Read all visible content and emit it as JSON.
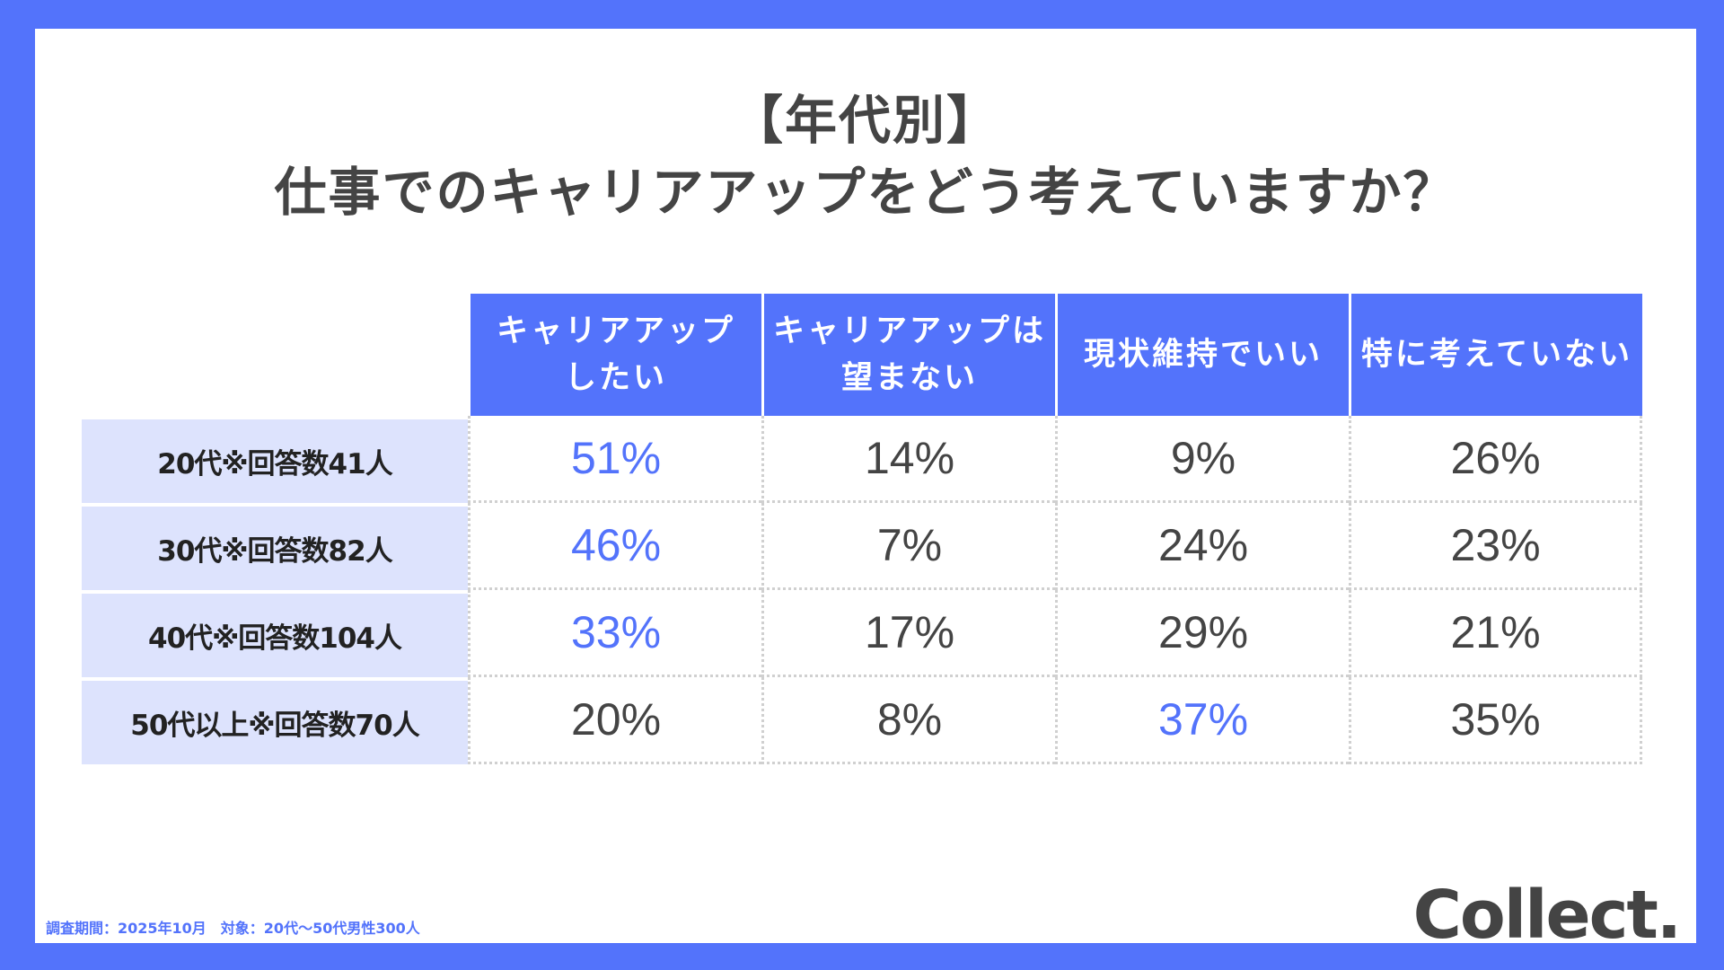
{
  "title": {
    "line1": "【年代別】",
    "line2": "仕事でのキャリアアップをどう考えていますか？"
  },
  "chart_data": {
    "type": "table",
    "columns": [
      {
        "line1": "キャリアアップ",
        "line2": "したい"
      },
      {
        "line1": "キャリアアップは",
        "line2": "望まない"
      },
      {
        "line1": "現状維持でいい",
        "line2": ""
      },
      {
        "line1": "特に考えていない",
        "line2": ""
      }
    ],
    "rows": [
      {
        "label": "20代※回答数41人",
        "values": [
          "51%",
          "14%",
          "9%",
          "26%"
        ],
        "highlight": [
          0
        ]
      },
      {
        "label": "30代※回答数82人",
        "values": [
          "46%",
          "7%",
          "24%",
          "23%"
        ],
        "highlight": [
          0
        ]
      },
      {
        "label": "40代※回答数104人",
        "values": [
          "33%",
          "17%",
          "29%",
          "21%"
        ],
        "highlight": [
          0
        ]
      },
      {
        "label": "50代以上※回答数70人",
        "values": [
          "20%",
          "8%",
          "37%",
          "35%"
        ],
        "highlight": [
          2
        ]
      }
    ]
  },
  "colors": {
    "accent": "#5373fb",
    "row_header_bg": "#dde3fd",
    "text": "#444444"
  },
  "footnote": "調査期間：2025年10月　対象：20代〜50代男性300人",
  "logo": "Collect."
}
